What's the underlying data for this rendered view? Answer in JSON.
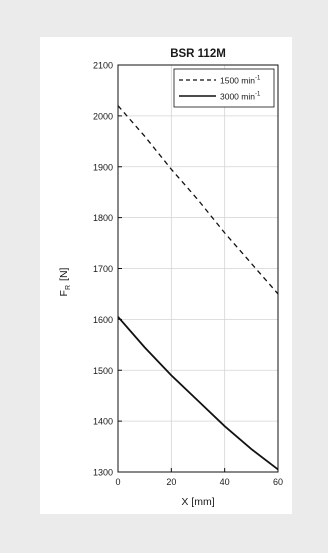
{
  "chart_data": {
    "type": "line",
    "title": "BSR 112M",
    "xlabel": "X [mm]",
    "ylabel": "F",
    "ylabel_sub": "R",
    "ylabel_unit": "[N]",
    "xlim": [
      0,
      60
    ],
    "ylim": [
      1300,
      2100
    ],
    "xticks": [
      0,
      20,
      40,
      60
    ],
    "yticks": [
      1300,
      1400,
      1500,
      1600,
      1700,
      1800,
      1900,
      2000,
      2100
    ],
    "grid": true,
    "legend_position": "top-right",
    "series": [
      {
        "name": "1500 min",
        "name_sup": "-1",
        "style": "dashed",
        "color": "#111111",
        "x": [
          0,
          10,
          20,
          30,
          40,
          50,
          60
        ],
        "y": [
          2020,
          1960,
          1895,
          1835,
          1770,
          1710,
          1650
        ]
      },
      {
        "name": "3000 min",
        "name_sup": "-1",
        "style": "solid",
        "color": "#111111",
        "x": [
          0,
          10,
          20,
          30,
          40,
          50,
          60
        ],
        "y": [
          1605,
          1545,
          1490,
          1440,
          1390,
          1345,
          1305
        ]
      }
    ]
  }
}
